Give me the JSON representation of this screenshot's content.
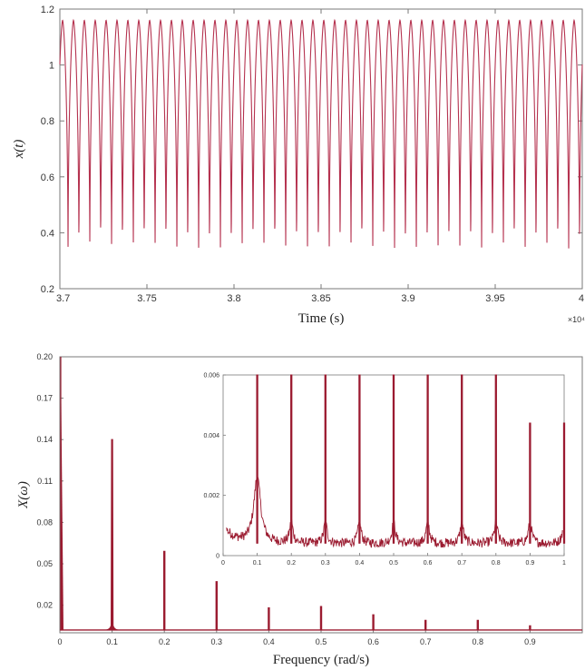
{
  "chart_data": [
    {
      "type": "line",
      "id": "time-series",
      "title": "",
      "xlabel": "Time  (s)",
      "ylabel": "x(t)",
      "x_exponent": "×10⁴",
      "xlim": [
        3.7,
        4.0
      ],
      "ylim": [
        0.2,
        1.2
      ],
      "x_ticks": [
        "3.7",
        "3.75",
        "3.8",
        "3.85",
        "3.9",
        "3.95",
        "4"
      ],
      "y_ticks": [
        "0.2",
        "0.4",
        "0.6",
        "0.8",
        "1",
        "1.2"
      ],
      "series": [
        {
          "oscillation_peak": 1.16,
          "oscillation_trough_min": 0.27,
          "oscillation_trough_max": 0.3,
          "cycles_shown": 48,
          "color": "#b5324f"
        }
      ],
      "grid": false
    },
    {
      "type": "line",
      "id": "spectrum",
      "title": "",
      "xlabel": "Frequency  (rad/s)",
      "ylabel": "X(ω)",
      "xlim": [
        0,
        1.0
      ],
      "ylim": [
        0,
        0.2
      ],
      "x_ticks": [
        "0",
        "0.1",
        "0.2",
        "0.3",
        "0.4",
        "0.5",
        "0.6",
        "0.7",
        "0.8",
        "0.9"
      ],
      "y_ticks": [
        "0.02",
        "0.05",
        "0.08",
        "0.11",
        "0.14",
        "0.17",
        "0.20"
      ],
      "y_tick_values": [
        0.02,
        0.05,
        0.08,
        0.11,
        0.14,
        0.17,
        0.2
      ],
      "peaks": [
        {
          "x": 0.0,
          "y": 0.2
        },
        {
          "x": 0.1,
          "y": 0.14
        },
        {
          "x": 0.2,
          "y": 0.059
        },
        {
          "x": 0.3,
          "y": 0.037
        },
        {
          "x": 0.4,
          "y": 0.018
        },
        {
          "x": 0.5,
          "y": 0.019
        },
        {
          "x": 0.6,
          "y": 0.013
        },
        {
          "x": 0.7,
          "y": 0.009
        },
        {
          "x": 0.8,
          "y": 0.009
        },
        {
          "x": 0.9,
          "y": 0.005
        }
      ],
      "baseline": 0.002,
      "color": "#9b1b30",
      "grid": false
    },
    {
      "type": "line",
      "id": "spectrum-inset",
      "title": "",
      "xlim": [
        0,
        1.0
      ],
      "ylim": [
        0,
        0.006
      ],
      "x_ticks": [
        "0",
        "0.1",
        "0.2",
        "0.3",
        "0.4",
        "0.5",
        "0.6",
        "0.7",
        "0.8",
        "0.9",
        "1"
      ],
      "y_ticks": [
        "0",
        "0.002",
        "0.004",
        "0.006"
      ],
      "peaks": [
        {
          "x": 0.1,
          "y": 0.006
        },
        {
          "x": 0.2,
          "y": 0.006
        },
        {
          "x": 0.3,
          "y": 0.006
        },
        {
          "x": 0.4,
          "y": 0.006
        },
        {
          "x": 0.5,
          "y": 0.006
        },
        {
          "x": 0.6,
          "y": 0.006
        },
        {
          "x": 0.7,
          "y": 0.006
        },
        {
          "x": 0.8,
          "y": 0.006
        },
        {
          "x": 0.9,
          "y": 0.0044
        },
        {
          "x": 1.0,
          "y": 0.0044
        }
      ],
      "noise_floor": 0.0004,
      "color": "#9b1b30"
    }
  ]
}
